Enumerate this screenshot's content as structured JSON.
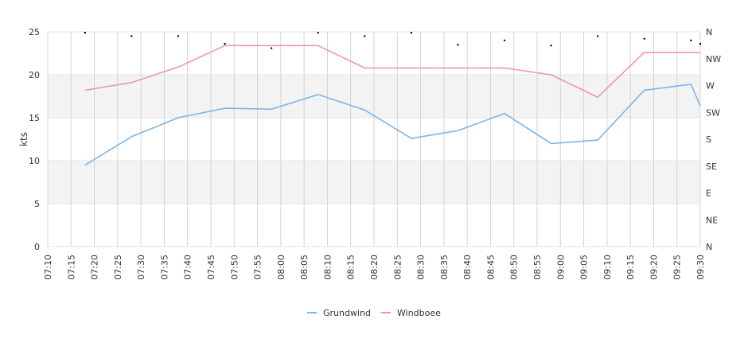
{
  "chart_data": {
    "type": "line",
    "ylabel": "kts",
    "ylim": [
      0,
      25
    ],
    "y_ticks": [
      "0",
      "5",
      "10",
      "15",
      "20",
      "25"
    ],
    "y2_ticks": [
      "N",
      "NE",
      "E",
      "SE",
      "S",
      "SW",
      "W",
      "NW",
      "N"
    ],
    "x_ticks": [
      "07:10",
      "07:15",
      "07:20",
      "07:25",
      "07:30",
      "07:35",
      "07:40",
      "07:45",
      "07:50",
      "07:55",
      "08:00",
      "08:05",
      "08:10",
      "08:15",
      "08:20",
      "08:25",
      "08:30",
      "08:35",
      "08:40",
      "08:45",
      "08:50",
      "08:55",
      "09:00",
      "09:05",
      "09:10",
      "09:15",
      "09:20",
      "09:25",
      "09:30"
    ],
    "grid": true,
    "legend": "bottom-center",
    "colors": {
      "grundwind": "#7cb5ec",
      "windboee": "#f191c0",
      "direction": "#000000",
      "band": "#f3f3f3"
    },
    "series": [
      {
        "name": "Grundwind",
        "x": [
          "07:18",
          "07:28",
          "07:38",
          "07:48",
          "07:58",
          "08:08",
          "08:18",
          "08:28",
          "08:38",
          "08:48",
          "08:58",
          "09:08",
          "09:18",
          "09:28",
          "09:30"
        ],
        "values": [
          9.5,
          12.8,
          15.0,
          16.1,
          16.0,
          17.7,
          15.9,
          12.6,
          13.5,
          15.5,
          12.0,
          12.4,
          18.2,
          18.9,
          16.4
        ]
      },
      {
        "name": "Windboee",
        "x": [
          "07:18",
          "07:28",
          "07:38",
          "07:48",
          "07:58",
          "08:08",
          "08:18",
          "08:28",
          "08:38",
          "08:48",
          "08:58",
          "09:08",
          "09:18",
          "09:28",
          "09:30"
        ],
        "values": [
          18.2,
          19.1,
          20.9,
          23.4,
          23.4,
          23.4,
          20.8,
          20.8,
          20.8,
          20.8,
          20.0,
          17.4,
          22.6,
          22.6,
          22.6
        ]
      }
    ],
    "direction_points": {
      "x": [
        "07:18",
        "07:28",
        "07:38",
        "07:48",
        "07:58",
        "08:08",
        "08:18",
        "08:28",
        "08:38",
        "08:48",
        "08:58",
        "09:08",
        "09:18",
        "09:28",
        "09:30"
      ],
      "values": [
        24.9,
        24.5,
        24.5,
        23.6,
        23.1,
        24.9,
        24.5,
        24.9,
        23.5,
        24.0,
        23.4,
        24.5,
        24.2,
        24.0,
        23.6
      ]
    }
  }
}
